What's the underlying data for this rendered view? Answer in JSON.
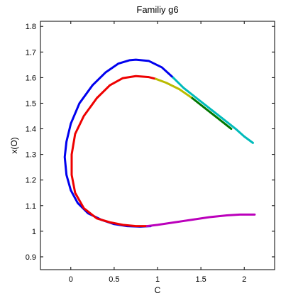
{
  "chart_data": {
    "type": "line",
    "title": "Familiy g6",
    "xlabel": "C",
    "ylabel": "x(O)",
    "xlim": [
      -0.35,
      2.35
    ],
    "ylim": [
      0.85,
      1.82
    ],
    "xticks": [
      0,
      0.5,
      1,
      1.5,
      2
    ],
    "xtick_labels": [
      "0",
      "0.5",
      "1",
      "1.5",
      "2"
    ],
    "yticks": [
      0.9,
      1,
      1.1,
      1.2,
      1.3,
      1.4,
      1.5,
      1.6,
      1.7,
      1.8
    ],
    "ytick_labels": [
      "0.9",
      "1",
      "1.1",
      "1.2",
      "1.3",
      "1.4",
      "1.5",
      "1.6",
      "1.7",
      "1.8"
    ],
    "grid": false,
    "series": [
      {
        "color": "#0000ee",
        "x": [
          1.18,
          1.05,
          0.9,
          0.75,
          0.68,
          0.55,
          0.4,
          0.25,
          0.1,
          0.0,
          -0.05,
          -0.07,
          -0.05,
          0.0,
          0.08,
          0.2,
          0.35,
          0.5,
          0.65,
          0.8,
          0.92
        ],
        "y": [
          1.6,
          1.64,
          1.665,
          1.67,
          1.668,
          1.655,
          1.62,
          1.57,
          1.5,
          1.42,
          1.35,
          1.29,
          1.22,
          1.16,
          1.11,
          1.07,
          1.045,
          1.028,
          1.02,
          1.018,
          1.02
        ]
      },
      {
        "color": "#00bbbb",
        "x": [
          1.18,
          1.3,
          1.45,
          1.6,
          1.75,
          1.9,
          2.0,
          2.1
        ],
        "y": [
          1.6,
          1.56,
          1.52,
          1.48,
          1.44,
          1.4,
          1.37,
          1.345
        ]
      },
      {
        "color": "#ee0000",
        "x": [
          0.98,
          0.9,
          0.75,
          0.6,
          0.45,
          0.3,
          0.15,
          0.05,
          0.01,
          0.01,
          0.05,
          0.15,
          0.3,
          0.45,
          0.6,
          0.75,
          0.88
        ],
        "y": [
          1.595,
          1.602,
          1.606,
          1.598,
          1.57,
          1.52,
          1.45,
          1.38,
          1.3,
          1.22,
          1.15,
          1.09,
          1.05,
          1.035,
          1.025,
          1.02,
          1.02
        ]
      },
      {
        "color": "#bbbb00",
        "x": [
          0.98,
          1.1,
          1.25,
          1.4
        ],
        "y": [
          1.595,
          1.58,
          1.555,
          1.52
        ]
      },
      {
        "color": "#007700",
        "x": [
          1.4,
          1.55,
          1.7,
          1.85
        ],
        "y": [
          1.52,
          1.48,
          1.44,
          1.4
        ]
      },
      {
        "color": "#bb00bb",
        "x": [
          0.88,
          1.0,
          1.2,
          1.4,
          1.6,
          1.8,
          1.95,
          2.05,
          2.12
        ],
        "y": [
          1.02,
          1.025,
          1.035,
          1.045,
          1.055,
          1.062,
          1.065,
          1.065,
          1.065
        ]
      }
    ]
  }
}
